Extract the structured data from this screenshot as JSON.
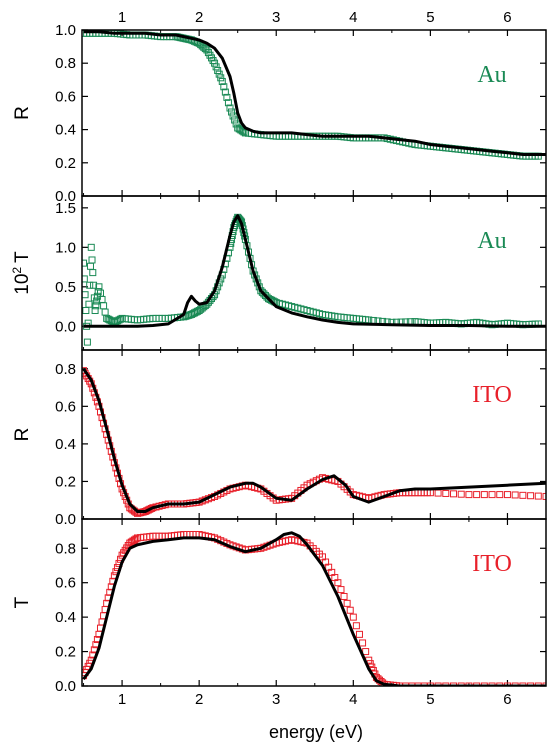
{
  "colors": {
    "au": "#1a8a55",
    "ito": "#e8202a",
    "fit": "#000000"
  },
  "chart_data": [
    {
      "type": "scatter",
      "ylabel": "R",
      "annotation": "Au",
      "marker_color": "#1a8a55",
      "xlim": [
        0.48,
        6.5
      ],
      "ylim": [
        0.0,
        1.0
      ],
      "yticks": [
        "0.0",
        "0.2",
        "0.4",
        "0.6",
        "0.8",
        "1.0"
      ],
      "xticks_top": [
        "1",
        "2",
        "3",
        "4",
        "5",
        "6"
      ],
      "series": [
        {
          "kind": "data",
          "x": [
            0.5,
            0.7,
            0.9,
            1.1,
            1.3,
            1.5,
            1.7,
            1.8,
            1.9,
            2.0,
            2.1,
            2.2,
            2.3,
            2.4,
            2.5,
            2.6,
            2.8,
            3.0,
            3.2,
            3.4,
            3.6,
            3.8,
            4.0,
            4.2,
            4.4,
            4.6,
            4.8,
            5.0,
            5.2,
            5.4,
            5.6,
            5.8,
            6.0,
            6.2,
            6.4
          ],
          "y": [
            0.98,
            0.98,
            0.98,
            0.97,
            0.97,
            0.96,
            0.96,
            0.95,
            0.94,
            0.92,
            0.88,
            0.8,
            0.69,
            0.53,
            0.41,
            0.38,
            0.37,
            0.36,
            0.36,
            0.36,
            0.36,
            0.36,
            0.35,
            0.35,
            0.35,
            0.33,
            0.31,
            0.3,
            0.29,
            0.28,
            0.27,
            0.26,
            0.25,
            0.24,
            0.24
          ]
        },
        {
          "kind": "fit",
          "x": [
            0.5,
            0.7,
            0.9,
            1.1,
            1.3,
            1.5,
            1.7,
            1.8,
            1.9,
            2.0,
            2.1,
            2.2,
            2.3,
            2.4,
            2.45,
            2.5,
            2.55,
            2.6,
            2.7,
            2.8,
            3.0,
            3.2,
            3.4,
            3.6,
            3.8,
            4.0,
            4.2,
            4.4,
            4.6,
            4.8,
            5.0,
            5.2,
            5.4,
            5.6,
            5.8,
            6.0,
            6.2,
            6.5
          ],
          "y": [
            0.99,
            0.99,
            0.98,
            0.98,
            0.98,
            0.97,
            0.97,
            0.96,
            0.95,
            0.94,
            0.92,
            0.89,
            0.83,
            0.72,
            0.62,
            0.5,
            0.44,
            0.41,
            0.39,
            0.38,
            0.38,
            0.38,
            0.37,
            0.36,
            0.36,
            0.36,
            0.36,
            0.35,
            0.34,
            0.33,
            0.31,
            0.3,
            0.29,
            0.28,
            0.27,
            0.26,
            0.25,
            0.25
          ]
        }
      ]
    },
    {
      "type": "scatter",
      "ylabel": "10",
      "ylabel_sup": "2",
      "ylabel_after": "T",
      "annotation": "Au",
      "marker_color": "#1a8a55",
      "xlim": [
        0.48,
        6.5
      ],
      "ylim": [
        -0.3,
        1.65
      ],
      "yticks": [
        "0.0",
        "0.5",
        "1.0",
        "1.5"
      ],
      "series": [
        {
          "kind": "data",
          "x": [
            0.5,
            0.55,
            0.6,
            0.65,
            0.7,
            0.8,
            0.9,
            1.0,
            1.2,
            1.4,
            1.6,
            1.8,
            1.9,
            2.0,
            2.1,
            2.2,
            2.3,
            2.4,
            2.45,
            2.5,
            2.55,
            2.6,
            2.7,
            2.8,
            2.9,
            3.0,
            3.2,
            3.4,
            3.6,
            3.8,
            4.0,
            4.2,
            4.5,
            4.8,
            5.0,
            5.2,
            5.4,
            5.6,
            5.8,
            6.0,
            6.2,
            6.4
          ],
          "y": [
            0.8,
            -0.2,
            1.0,
            0.2,
            0.5,
            0.1,
            0.05,
            0.1,
            0.08,
            0.1,
            0.1,
            0.12,
            0.15,
            0.2,
            0.28,
            0.4,
            0.65,
            1.0,
            1.25,
            1.38,
            1.32,
            1.1,
            0.7,
            0.45,
            0.35,
            0.3,
            0.25,
            0.2,
            0.15,
            0.12,
            0.1,
            0.08,
            0.05,
            0.06,
            0.04,
            0.05,
            0.03,
            0.05,
            0.02,
            0.04,
            0.02,
            0.03
          ]
        },
        {
          "kind": "fit",
          "x": [
            0.5,
            0.8,
            1.0,
            1.2,
            1.4,
            1.6,
            1.8,
            1.85,
            1.9,
            1.95,
            2.0,
            2.1,
            2.2,
            2.3,
            2.4,
            2.45,
            2.5,
            2.55,
            2.6,
            2.7,
            2.8,
            3.0,
            3.2,
            3.4,
            3.6,
            3.8,
            4.0,
            4.5,
            5.0,
            5.5,
            6.0,
            6.5
          ],
          "y": [
            0.0,
            0.0,
            0.0,
            0.0,
            0.01,
            0.03,
            0.15,
            0.3,
            0.38,
            0.32,
            0.28,
            0.3,
            0.45,
            0.75,
            1.15,
            1.32,
            1.4,
            1.3,
            1.1,
            0.7,
            0.45,
            0.25,
            0.17,
            0.12,
            0.08,
            0.05,
            0.03,
            0.02,
            0.01,
            0.01,
            0.0,
            0.0
          ]
        }
      ]
    },
    {
      "type": "scatter",
      "ylabel": "R",
      "annotation": "ITO",
      "marker_color": "#e8202a",
      "xlim": [
        0.48,
        6.5
      ],
      "ylim": [
        0.0,
        0.9
      ],
      "yticks": [
        "0.0",
        "0.2",
        "0.4",
        "0.6",
        "0.8"
      ],
      "series": [
        {
          "kind": "data",
          "x": [
            0.5,
            0.6,
            0.7,
            0.8,
            0.9,
            1.0,
            1.1,
            1.2,
            1.3,
            1.4,
            1.6,
            1.8,
            2.0,
            2.2,
            2.4,
            2.6,
            2.8,
            3.0,
            3.2,
            3.4,
            3.6,
            3.8,
            4.0,
            4.2,
            4.4,
            4.6,
            4.8,
            5.0,
            5.5,
            6.0,
            6.5
          ],
          "y": [
            0.79,
            0.72,
            0.6,
            0.45,
            0.3,
            0.16,
            0.06,
            0.03,
            0.04,
            0.06,
            0.08,
            0.08,
            0.09,
            0.12,
            0.16,
            0.18,
            0.16,
            0.1,
            0.11,
            0.18,
            0.22,
            0.2,
            0.13,
            0.11,
            0.13,
            0.14,
            0.14,
            0.14,
            0.13,
            0.13,
            0.12
          ]
        },
        {
          "kind": "fit",
          "x": [
            0.5,
            0.6,
            0.7,
            0.8,
            0.9,
            1.0,
            1.1,
            1.2,
            1.3,
            1.4,
            1.6,
            1.8,
            2.0,
            2.2,
            2.4,
            2.6,
            2.7,
            2.8,
            3.0,
            3.2,
            3.4,
            3.6,
            3.75,
            3.9,
            4.0,
            4.2,
            4.4,
            4.6,
            4.8,
            5.0,
            5.5,
            6.0,
            6.5
          ],
          "y": [
            0.8,
            0.74,
            0.63,
            0.48,
            0.32,
            0.18,
            0.08,
            0.04,
            0.04,
            0.06,
            0.08,
            0.08,
            0.09,
            0.13,
            0.17,
            0.19,
            0.19,
            0.17,
            0.11,
            0.1,
            0.16,
            0.21,
            0.23,
            0.18,
            0.12,
            0.09,
            0.12,
            0.15,
            0.16,
            0.16,
            0.17,
            0.18,
            0.19
          ]
        }
      ]
    },
    {
      "type": "scatter",
      "ylabel": "T",
      "annotation": "ITO",
      "marker_color": "#e8202a",
      "xlim": [
        0.48,
        6.5
      ],
      "ylim": [
        0.0,
        0.97
      ],
      "yticks": [
        "0.0",
        "0.2",
        "0.4",
        "0.6",
        "0.8"
      ],
      "xticks": [
        "1",
        "2",
        "3",
        "4",
        "5",
        "6"
      ],
      "xlabel": "energy (eV)",
      "series": [
        {
          "kind": "data",
          "x": [
            0.5,
            0.6,
            0.7,
            0.8,
            0.9,
            1.0,
            1.1,
            1.2,
            1.4,
            1.6,
            1.8,
            2.0,
            2.2,
            2.4,
            2.6,
            2.8,
            3.0,
            3.2,
            3.4,
            3.6,
            3.8,
            4.0,
            4.2,
            4.3,
            4.4,
            4.6,
            5.0,
            5.5,
            6.0,
            6.5
          ],
          "y": [
            0.06,
            0.15,
            0.3,
            0.48,
            0.64,
            0.76,
            0.83,
            0.86,
            0.87,
            0.87,
            0.88,
            0.88,
            0.86,
            0.82,
            0.79,
            0.8,
            0.83,
            0.85,
            0.83,
            0.75,
            0.6,
            0.4,
            0.15,
            0.05,
            0.01,
            0.0,
            0.0,
            0.0,
            0.0,
            0.0
          ]
        },
        {
          "kind": "fit",
          "x": [
            0.5,
            0.6,
            0.7,
            0.8,
            0.9,
            1.0,
            1.1,
            1.2,
            1.4,
            1.6,
            1.8,
            2.0,
            2.2,
            2.4,
            2.6,
            2.8,
            3.0,
            3.1,
            3.2,
            3.3,
            3.4,
            3.6,
            3.8,
            4.0,
            4.2,
            4.3,
            4.4,
            4.6,
            5.0,
            6.5
          ],
          "y": [
            0.04,
            0.1,
            0.22,
            0.4,
            0.58,
            0.72,
            0.8,
            0.82,
            0.84,
            0.85,
            0.86,
            0.86,
            0.85,
            0.81,
            0.78,
            0.8,
            0.85,
            0.88,
            0.89,
            0.87,
            0.82,
            0.7,
            0.52,
            0.3,
            0.1,
            0.03,
            0.01,
            0.0,
            0.0,
            0.0
          ]
        }
      ]
    }
  ]
}
